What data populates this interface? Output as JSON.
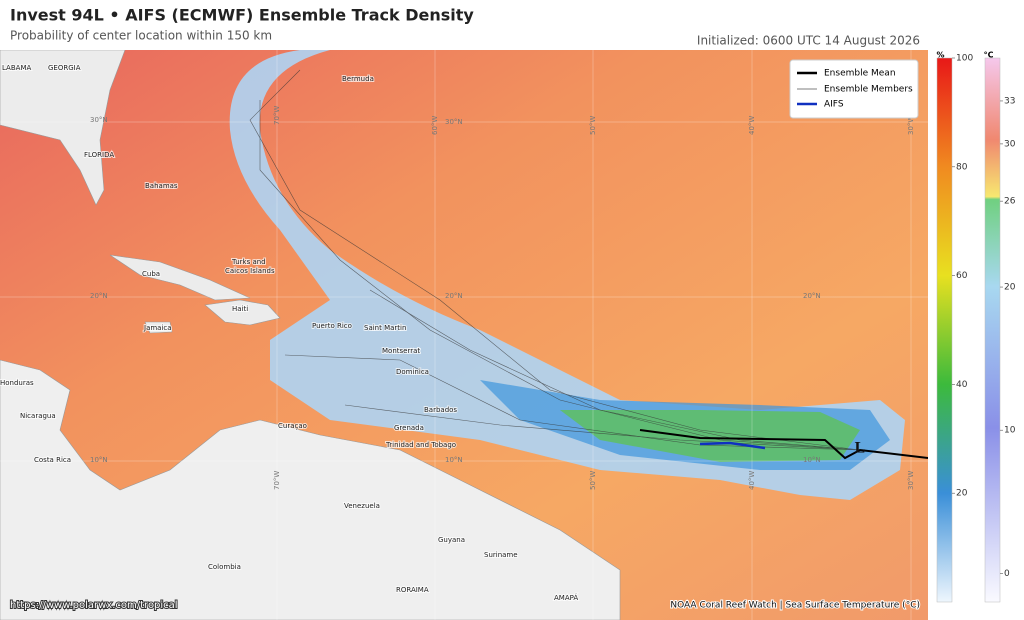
{
  "header": {
    "title": "Invest 94L • AIFS (ECMWF) Ensemble Track Density",
    "subtitle": "Probability of center location within 150 km",
    "initialized": "Initialized: 0600 UTC 14 August 2026"
  },
  "legend": [
    "Ensemble Mean",
    "Ensemble Members",
    "AIFS"
  ],
  "colorbars": [
    {
      "unit": "%",
      "lim": [
        0,
        100
      ],
      "ticks": [
        20,
        40,
        60,
        80,
        100
      ]
    },
    {
      "unit": "°C",
      "lim": [
        -2,
        36
      ],
      "ticks": [
        0,
        10,
        20,
        26,
        30,
        33
      ]
    }
  ],
  "places": [
    "LABAMA",
    "GEORGIA",
    "FLORIDA",
    "Bahamas",
    "Cuba",
    "Turks and",
    "Caicos Islands",
    "Haiti",
    "Jamaica",
    "Puerto Rico",
    "Saint Martin",
    "Montserrat",
    "Dominica",
    "Barbados",
    "Grenada",
    "Curaçao",
    "Trinidad and Tobago",
    "Honduras",
    "Nicaragua",
    "Costa Rica",
    "Venezuela",
    "Guyana",
    "Suriname",
    "Colombia",
    "RORAIMA",
    "AMAPÁ",
    "Bermuda"
  ],
  "graticule": [
    "30°N",
    "30°N",
    "20°N",
    "20°N",
    "20°N",
    "10°N",
    "10°N",
    "10°N",
    "70°W",
    "60°W",
    "50°W",
    "40°W",
    "30°W",
    "70°W",
    "50°W",
    "40°W",
    "30°W"
  ],
  "storm_symbol": "L",
  "credits": {
    "left": "https://www.polarwx.com/tropical",
    "right": "NOAA Coral Reef Watch | Sea Surface Temperature (°C)"
  }
}
